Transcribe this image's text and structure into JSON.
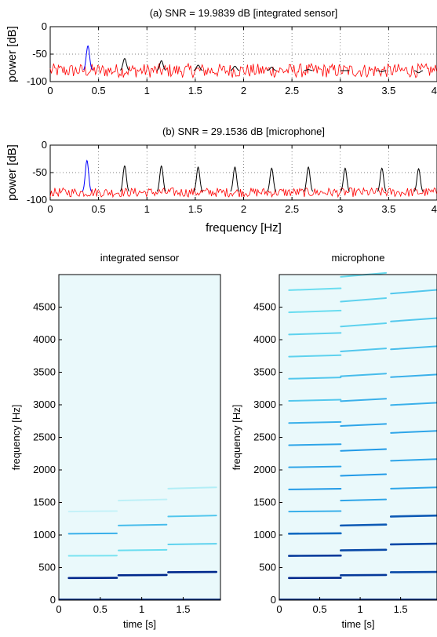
{
  "chart_data": [
    {
      "type": "line",
      "title": "(a)  SNR = 19.9839 dB  [integrated sensor]",
      "xlabel": "",
      "ylabel": "power [dB]",
      "xlim": [
        0,
        4
      ],
      "ylim": [
        -100,
        0
      ],
      "xticks": [
        0,
        0.5,
        1,
        1.5,
        2,
        2.5,
        3,
        3.5,
        4
      ],
      "xtick_labels": [
        "0",
        "0.5",
        "1",
        "1.5",
        "2",
        "2.5",
        "3",
        "3.5",
        "4"
      ],
      "yticks": [
        -100,
        -50,
        0
      ],
      "ytick_labels": [
        "-100",
        "-50",
        "0"
      ],
      "grid": true,
      "series": [
        {
          "color": "#0000ff",
          "peaks": [
            {
              "x": 0.39,
              "y": -35
            }
          ]
        },
        {
          "color": "#000000",
          "peaks": [
            {
              "x": 0.77,
              "y": -58
            },
            {
              "x": 1.15,
              "y": -62
            },
            {
              "x": 1.53,
              "y": -70
            },
            {
              "x": 1.91,
              "y": -72
            },
            {
              "x": 2.29,
              "y": -74
            },
            {
              "x": 2.67,
              "y": -78
            },
            {
              "x": 3.05,
              "y": -80
            },
            {
              "x": 3.43,
              "y": -82
            },
            {
              "x": 3.81,
              "y": -84
            }
          ]
        },
        {
          "color": "#ff0000",
          "noise_floor": -80,
          "noise_range": [
            -95,
            -65
          ]
        }
      ]
    },
    {
      "type": "line",
      "title": "(b)  SNR = 29.1536 dB  [microphone]",
      "xlabel": "frequency [Hz]",
      "ylabel": "power [dB]",
      "xlim": [
        0,
        4
      ],
      "ylim": [
        -100,
        0
      ],
      "xticks": [
        0,
        0.5,
        1,
        1.5,
        2,
        2.5,
        3,
        3.5,
        4
      ],
      "xtick_labels": [
        "0",
        "0.5",
        "1",
        "1.5",
        "2",
        "2.5",
        "3",
        "3.5",
        "4"
      ],
      "yticks": [
        -100,
        -50,
        0
      ],
      "ytick_labels": [
        "-100",
        "-50",
        "0"
      ],
      "grid": true,
      "series": [
        {
          "color": "#0000ff",
          "peaks": [
            {
              "x": 0.38,
              "y": -28
            }
          ]
        },
        {
          "color": "#000000",
          "peaks": [
            {
              "x": 0.77,
              "y": -38
            },
            {
              "x": 1.15,
              "y": -38
            },
            {
              "x": 1.53,
              "y": -40
            },
            {
              "x": 1.91,
              "y": -40
            },
            {
              "x": 2.29,
              "y": -42
            },
            {
              "x": 2.67,
              "y": -40
            },
            {
              "x": 3.05,
              "y": -42
            },
            {
              "x": 3.43,
              "y": -42
            },
            {
              "x": 3.81,
              "y": -43
            }
          ]
        },
        {
          "color": "#ff0000",
          "noise_floor": -86,
          "noise_range": [
            -98,
            -78
          ]
        }
      ]
    },
    {
      "type": "heatmap",
      "title": "integrated sensor",
      "xlabel": "time [s]",
      "ylabel": "frequency [Hz]",
      "xlim": [
        0,
        1.95
      ],
      "ylim": [
        0,
        5000
      ],
      "xticks": [
        0,
        0.5,
        1,
        1.5
      ],
      "xtick_labels": [
        "0",
        "0.5",
        "1",
        "1.5"
      ],
      "yticks": [
        0,
        500,
        1000,
        1500,
        2000,
        2500,
        3000,
        3500,
        4000,
        4500
      ],
      "ytick_labels": [
        "0",
        "500",
        "1000",
        "1500",
        "2000",
        "2500",
        "3000",
        "3500",
        "4000",
        "4500"
      ],
      "background_color": "#eaf9fb",
      "segments": [
        {
          "t0": 0.12,
          "t1": 0.7,
          "f0": 340,
          "harmonics": [
            1,
            2,
            3,
            4
          ],
          "strengths": [
            1.0,
            0.3,
            0.55,
            0.1
          ]
        },
        {
          "t0": 0.72,
          "t1": 1.3,
          "f0": 382,
          "harmonics": [
            1,
            2,
            3,
            4
          ],
          "strengths": [
            1.0,
            0.35,
            0.5,
            0.12
          ]
        },
        {
          "t0": 1.32,
          "t1": 1.9,
          "f0": 428,
          "harmonics": [
            1,
            2,
            3,
            4
          ],
          "strengths": [
            1.0,
            0.4,
            0.45,
            0.15
          ]
        }
      ],
      "colormap": "light-cyan-to-dark-blue"
    },
    {
      "type": "heatmap",
      "title": "microphone",
      "xlabel": "time [s]",
      "ylabel": "frequency [Hz]",
      "xlim": [
        0,
        1.95
      ],
      "ylim": [
        0,
        5000
      ],
      "xticks": [
        0,
        0.5,
        1,
        1.5
      ],
      "xtick_labels": [
        "0",
        "0.5",
        "1",
        "1.5"
      ],
      "yticks": [
        0,
        500,
        1000,
        1500,
        2000,
        2500,
        3000,
        3500,
        4000,
        4500
      ],
      "ytick_labels": [
        "0",
        "500",
        "1000",
        "1500",
        "2000",
        "2500",
        "3000",
        "3500",
        "4000",
        "4500"
      ],
      "background_color": "#eaf9fb",
      "segments": [
        {
          "t0": 0.12,
          "t1": 0.76,
          "f0": 340,
          "harmonics": [
            1,
            2,
            3,
            4,
            5,
            6,
            7,
            8,
            9,
            10,
            11,
            12,
            13,
            14
          ],
          "strengths": [
            1.0,
            0.95,
            0.8,
            0.55,
            0.65,
            0.6,
            0.6,
            0.55,
            0.45,
            0.45,
            0.4,
            0.4,
            0.35,
            0.35
          ]
        },
        {
          "t0": 0.76,
          "t1": 1.32,
          "f0": 382,
          "harmonics": [
            1,
            2,
            3,
            4,
            5,
            6,
            7,
            8,
            9,
            10,
            11,
            12,
            13
          ],
          "strengths": [
            0.95,
            0.9,
            0.85,
            0.6,
            0.65,
            0.65,
            0.6,
            0.55,
            0.5,
            0.45,
            0.4,
            0.4,
            0.35
          ]
        },
        {
          "t0": 1.38,
          "t1": 1.95,
          "f0": 428,
          "harmonics": [
            1,
            2,
            3,
            4,
            5,
            6,
            7,
            8,
            9,
            10,
            11
          ],
          "strengths": [
            0.9,
            0.9,
            0.85,
            0.6,
            0.6,
            0.6,
            0.55,
            0.55,
            0.5,
            0.45,
            0.45
          ]
        }
      ],
      "colormap": "light-cyan-to-dark-blue"
    }
  ]
}
